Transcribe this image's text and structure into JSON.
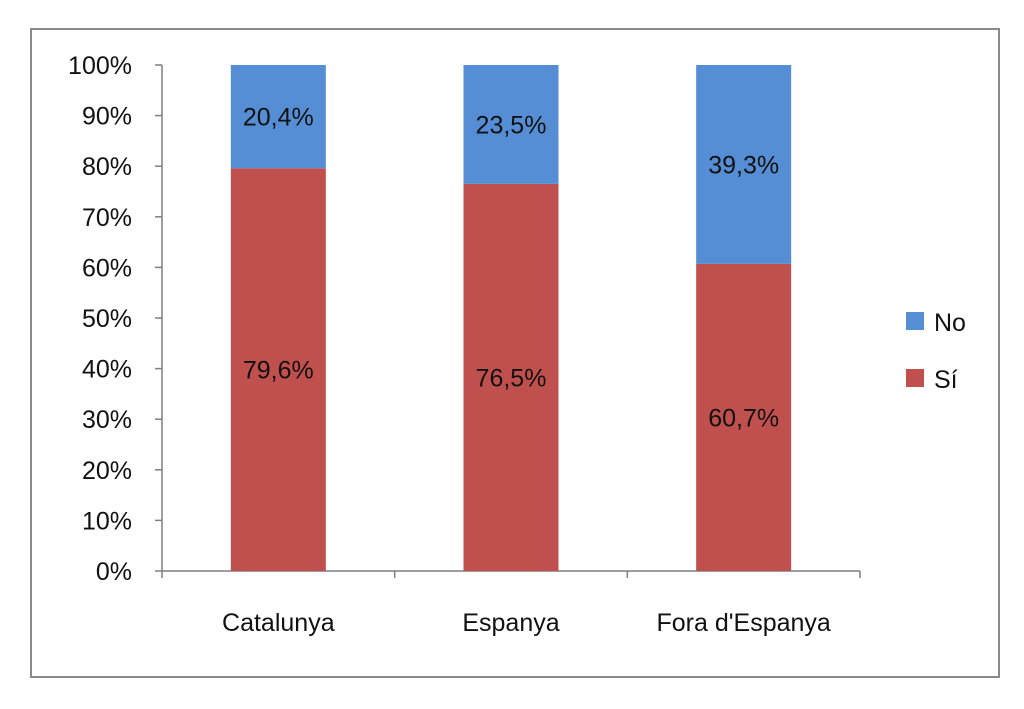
{
  "chart_data": {
    "type": "bar",
    "stacked": true,
    "categories": [
      "Catalunya",
      "Espanya",
      "Fora d'Espanya"
    ],
    "series": [
      {
        "name": "Sí",
        "color": "#C0504D",
        "values": [
          79.6,
          76.5,
          60.7
        ],
        "labels": [
          "79,6%",
          "76,5%",
          "60,7%"
        ]
      },
      {
        "name": "No",
        "color": "#558ED5",
        "values": [
          20.4,
          23.5,
          39.3
        ],
        "labels": [
          "20,4%",
          "23,5%",
          "39,3%"
        ]
      }
    ],
    "ylim": [
      0,
      100
    ],
    "yticks": [
      "0%",
      "10%",
      "20%",
      "30%",
      "40%",
      "50%",
      "60%",
      "70%",
      "80%",
      "90%",
      "100%"
    ],
    "legend": {
      "position": "right",
      "entries": [
        "No",
        "Sí"
      ]
    },
    "grid": false
  }
}
